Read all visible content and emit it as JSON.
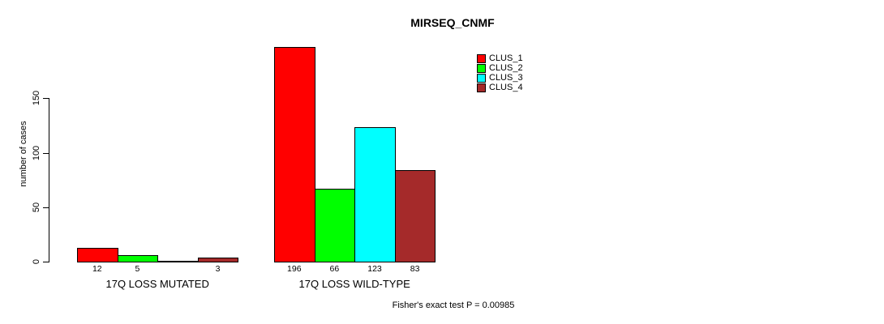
{
  "chart_data": {
    "type": "bar",
    "title": "MIRSEQ_CNMF",
    "ylabel": "number of cases",
    "yticks": [
      0,
      50,
      100,
      150
    ],
    "ylim": [
      0,
      200
    ],
    "grid": false,
    "legend_position": "top-right",
    "categories": [
      "17Q LOSS MUTATED",
      "17Q LOSS WILD-TYPE"
    ],
    "series": [
      {
        "name": "CLUS_1",
        "color": "#FF0000",
        "values": [
          12,
          196
        ]
      },
      {
        "name": "CLUS_2",
        "color": "#00FF00",
        "values": [
          5,
          66
        ]
      },
      {
        "name": "CLUS_3",
        "color": "#00FFFF",
        "values": [
          0,
          123
        ]
      },
      {
        "name": "CLUS_4",
        "color": "#A52A2A",
        "values": [
          3,
          83
        ]
      }
    ],
    "bar_labels": [
      [
        "12",
        "5",
        "",
        "3"
      ],
      [
        "196",
        "66",
        "123",
        "83"
      ]
    ],
    "footnote": "Fisher's exact test P = 0.00985"
  }
}
